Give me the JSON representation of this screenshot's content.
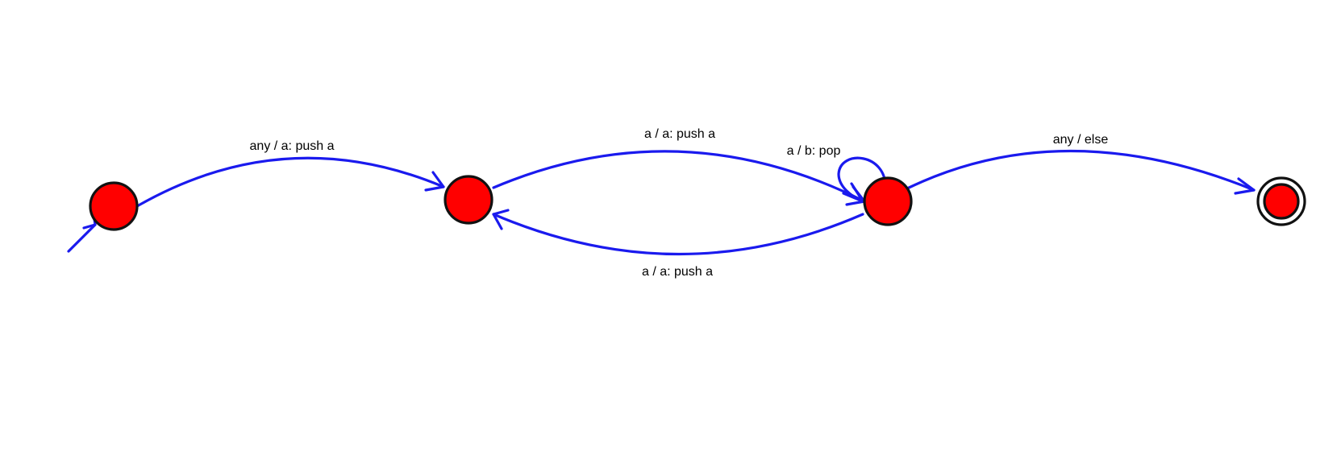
{
  "colors": {
    "state_fill": "#ff0000",
    "state_stroke": "#111111",
    "edge": "#1a1aee",
    "label": "#000000",
    "background": "#ffffff"
  },
  "states": [
    {
      "id": "q0",
      "initial": true,
      "accepting": false
    },
    {
      "id": "q1",
      "initial": false,
      "accepting": false
    },
    {
      "id": "q2",
      "initial": false,
      "accepting": false
    },
    {
      "id": "q3",
      "initial": false,
      "accepting": true
    }
  ],
  "transitions": [
    {
      "from": "q0",
      "to": "q1",
      "label": "any / a: push a"
    },
    {
      "from": "q1",
      "to": "q2",
      "label": "a / a: push a"
    },
    {
      "from": "q2",
      "to": "q2",
      "label": "a / b: pop"
    },
    {
      "from": "q2",
      "to": "q1",
      "label": "a / a: push a"
    },
    {
      "from": "q2",
      "to": "q3",
      "label": "any / else"
    }
  ]
}
